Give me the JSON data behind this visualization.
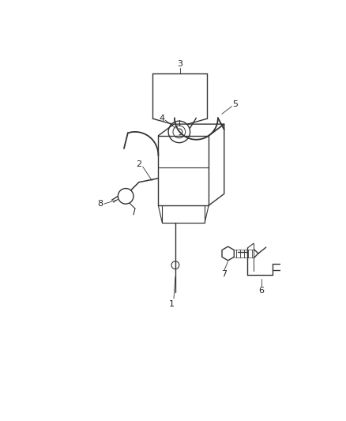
{
  "background_color": "#ffffff",
  "line_color": "#333333",
  "text_color": "#222222",
  "figsize": [
    4.38,
    5.33
  ],
  "dpi": 100,
  "lw": 1.0
}
